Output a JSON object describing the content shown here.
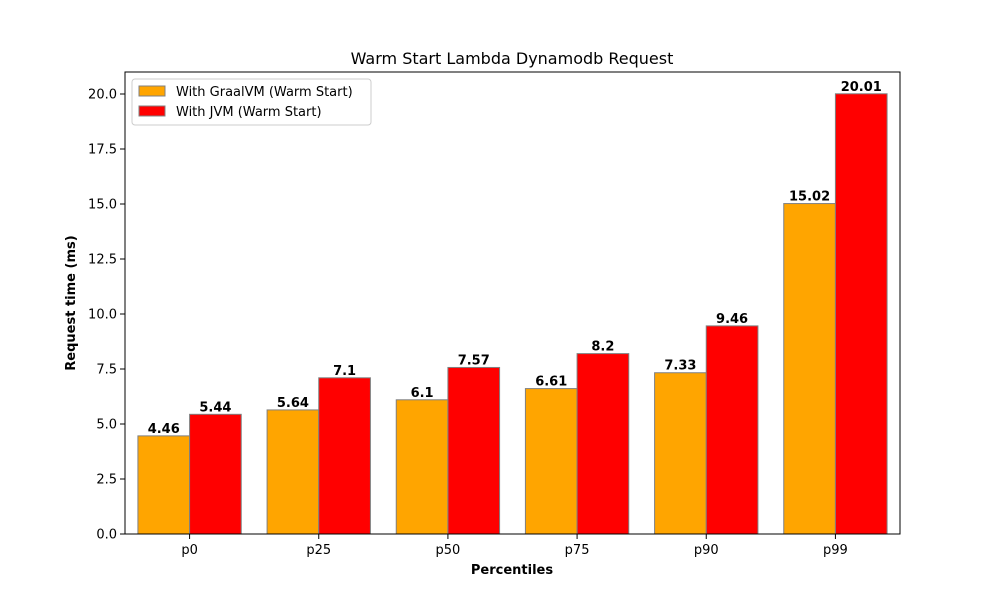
{
  "chart_data": {
    "type": "bar",
    "title": "Warm Start Lambda Dynamodb Request",
    "xlabel": "Percentiles",
    "ylabel": "Request time (ms)",
    "categories": [
      "p0",
      "p25",
      "p50",
      "p75",
      "p90",
      "p99"
    ],
    "series": [
      {
        "name": "With GraalVM (Warm Start)",
        "color": "#ffa500",
        "values": [
          4.46,
          5.64,
          6.1,
          6.61,
          7.33,
          15.02
        ]
      },
      {
        "name": "With JVM (Warm Start)",
        "color": "#ff0000",
        "values": [
          5.44,
          7.1,
          7.57,
          8.2,
          9.46,
          20.01
        ]
      }
    ],
    "ylim": [
      0,
      21
    ],
    "yticks": [
      "0.0",
      "2.5",
      "5.0",
      "7.5",
      "10.0",
      "12.5",
      "15.0",
      "17.5",
      "20.0"
    ],
    "legend": "top-left",
    "grid": false,
    "bar_edge_color": "#808080"
  }
}
